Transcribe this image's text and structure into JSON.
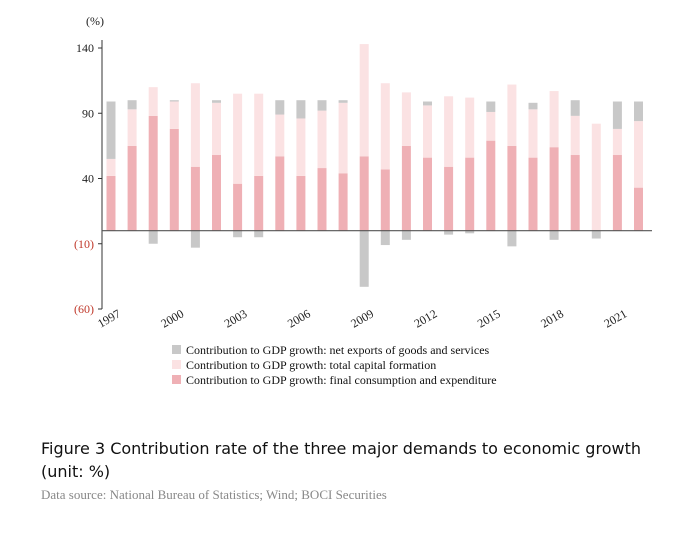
{
  "chart_data": {
    "type": "bar",
    "stacked": true,
    "unit": "(%)",
    "ylim": [
      -60,
      140
    ],
    "yticks": [
      140,
      90,
      40,
      -10,
      -60
    ],
    "ytick_labels": [
      "140",
      "90",
      "40",
      "(10)",
      "(60)"
    ],
    "categories": [
      "1997",
      "1998",
      "1999",
      "2000",
      "2001",
      "2002",
      "2003",
      "2004",
      "2005",
      "2006",
      "2007",
      "2008",
      "2009",
      "2010",
      "2011",
      "2012",
      "2013",
      "2014",
      "2015",
      "2016",
      "2017",
      "2018",
      "2019",
      "2020",
      "2021",
      "2022"
    ],
    "xtick_labels": [
      "1997",
      "2000",
      "2003",
      "2006",
      "2009",
      "2012",
      "2015",
      "2018",
      "2021"
    ],
    "series": [
      {
        "name": "Contribution to GDP growth: final consumption and expenditure",
        "color": "#efb0b5",
        "values": [
          42,
          65,
          88,
          78,
          49,
          58,
          36,
          42,
          57,
          42,
          48,
          44,
          57,
          47,
          65,
          56,
          49,
          56,
          69,
          65,
          56,
          64,
          58,
          0,
          58,
          33
        ]
      },
      {
        "name": "Contribution to GDP growth: total capital formation",
        "color": "#fbe2e3",
        "values": [
          13,
          28,
          22,
          21,
          64,
          40,
          69,
          63,
          32,
          44,
          44,
          54,
          86,
          66,
          41,
          40,
          54,
          46,
          22,
          47,
          37,
          43,
          30,
          82,
          20,
          51
        ]
      },
      {
        "name": "Contribution to GDP growth: net exports of goods and services",
        "color": "#c8c8c8",
        "values": [
          44,
          7,
          -10,
          1,
          -13,
          2,
          -5,
          -5,
          11,
          14,
          8,
          2,
          -43,
          -11,
          -7,
          3,
          -3,
          -2,
          8,
          -12,
          5,
          -7,
          12,
          -6,
          21,
          15
        ]
      }
    ]
  },
  "caption": "Figure 3 Contribution rate of the three major demands to economic growth (unit: %)",
  "source": "Data source: National Bureau of Statistics; Wind; BOCI Securities"
}
